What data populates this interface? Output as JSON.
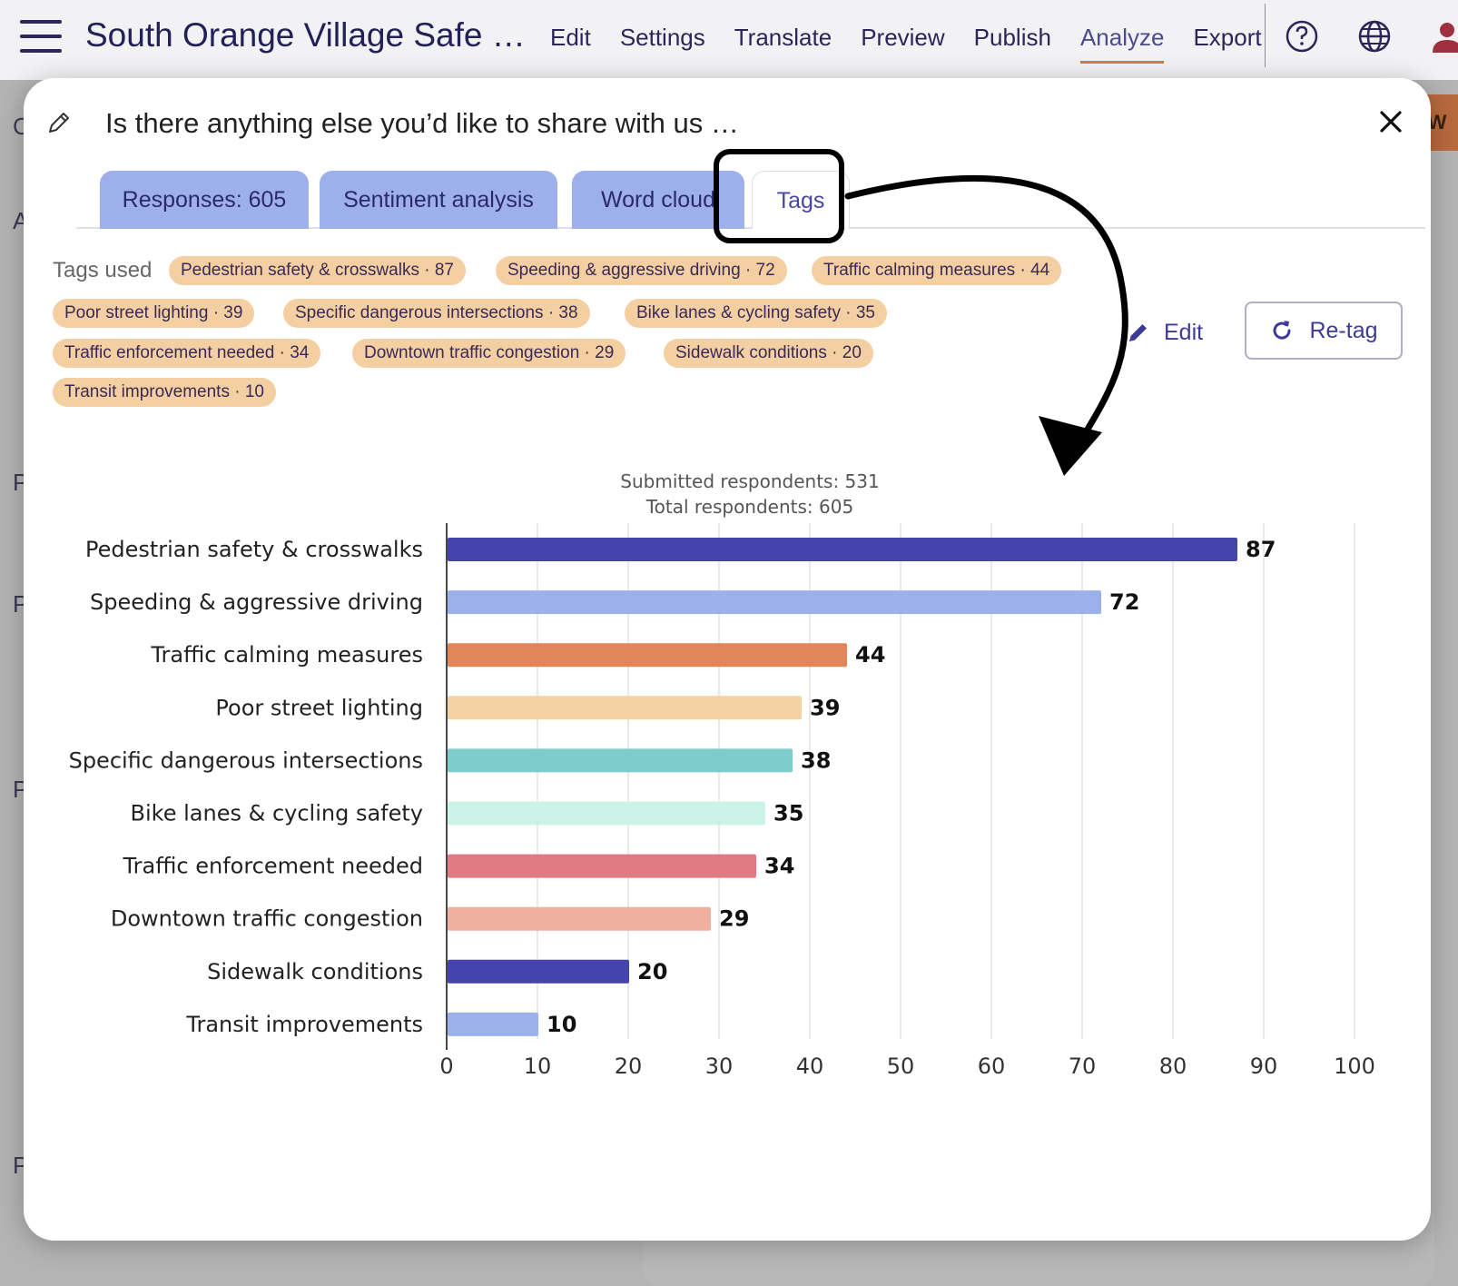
{
  "app": {
    "title": "South Orange Village Safe …",
    "nav": [
      "Edit",
      "Settings",
      "Translate",
      "Preview",
      "Publish",
      "Analyze",
      "Export"
    ],
    "active_nav": "Analyze",
    "help_icon": "help-circle-icon",
    "language_icon": "globe-icon",
    "account_icon": "user-icon"
  },
  "modal": {
    "title": "Is there anything else you’d like to share with us …",
    "tabs": [
      "Responses: 605",
      "Sentiment analysis",
      "Word cloud",
      "Tags"
    ],
    "active_tab": "Tags",
    "tags_used_label": "Tags used",
    "tags": [
      "Pedestrian safety & crosswalks · 87",
      "Speeding & aggressive driving · 72",
      "Traffic calming measures · 44",
      "Poor street lighting · 39",
      "Specific dangerous intersections · 38",
      "Bike lanes & cycling safety · 35",
      "Traffic enforcement needed · 34",
      "Downtown traffic congestion · 29",
      "Sidewalk conditions · 20",
      "Transit improvements · 10"
    ],
    "edit_label": "Edit",
    "retag_label": "Re-tag",
    "submitted": "Submitted respondents: 531",
    "total": "Total respondents: 605"
  },
  "chart_data": {
    "type": "bar",
    "orientation": "horizontal",
    "categories": [
      "Pedestrian safety & crosswalks",
      "Speeding & aggressive driving",
      "Traffic calming measures",
      "Poor street lighting",
      "Specific dangerous intersections",
      "Bike lanes & cycling safety",
      "Traffic enforcement needed",
      "Downtown traffic congestion",
      "Sidewalk conditions",
      "Transit improvements"
    ],
    "values": [
      87,
      72,
      44,
      39,
      38,
      35,
      34,
      29,
      20,
      10
    ],
    "colors": [
      "#4544ac",
      "#9cb0ec",
      "#e0865a",
      "#f4d2a4",
      "#7ecccc",
      "#cdf3e8",
      "#e07b84",
      "#f0b0a0",
      "#4544ac",
      "#9cb0ec"
    ],
    "xlim": [
      0,
      100
    ],
    "xticks": [
      0,
      10,
      20,
      30,
      40,
      50,
      60,
      70,
      80,
      90,
      100
    ],
    "grid": true,
    "data_labels": true
  }
}
